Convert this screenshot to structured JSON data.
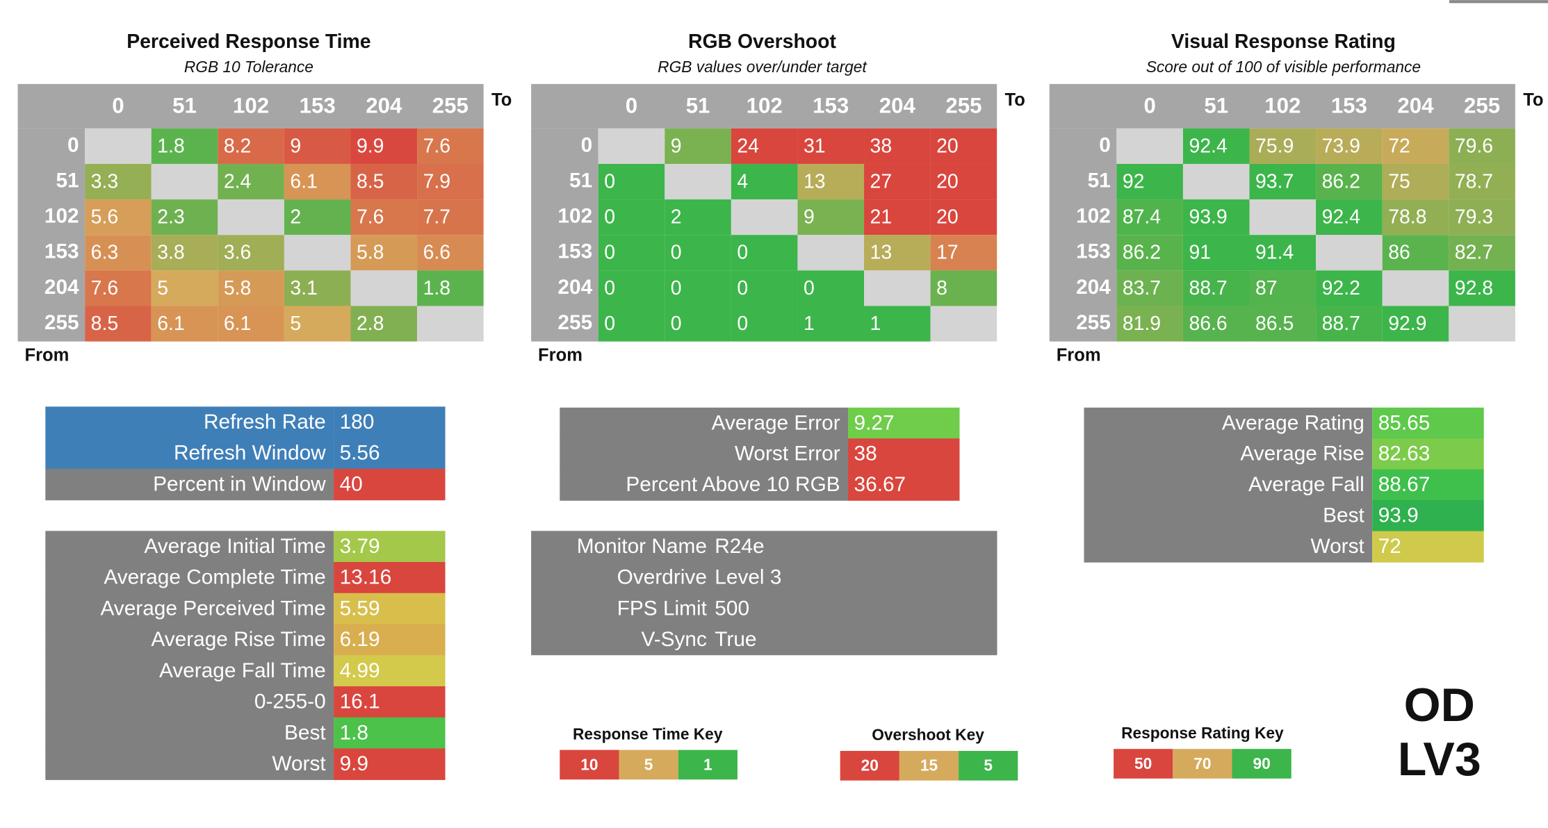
{
  "matrices": [
    {
      "title": "Perceived Response Time",
      "subtitle": "RGB 10 Tolerance",
      "to_label": "To",
      "from_label": "From",
      "columns": [
        0,
        51,
        102,
        153,
        204,
        255
      ],
      "rows": [
        0,
        51,
        102,
        153,
        204,
        255
      ],
      "cells": [
        [
          null,
          1.8,
          8.2,
          9,
          9.9,
          7.6
        ],
        [
          3.3,
          null,
          2.4,
          6.1,
          8.5,
          7.9
        ],
        [
          5.6,
          2.3,
          null,
          2,
          7.6,
          7.7
        ],
        [
          6.3,
          3.8,
          3.6,
          null,
          5.8,
          6.6
        ],
        [
          7.6,
          5,
          5.8,
          3.1,
          null,
          1.8
        ],
        [
          8.5,
          6.1,
          6.1,
          5,
          2.8,
          null
        ]
      ]
    },
    {
      "title": "RGB Overshoot",
      "subtitle": "RGB values over/under target",
      "to_label": "To",
      "from_label": "From",
      "columns": [
        0,
        51,
        102,
        153,
        204,
        255
      ],
      "rows": [
        0,
        51,
        102,
        153,
        204,
        255
      ],
      "cells": [
        [
          null,
          9,
          24,
          31,
          38,
          20
        ],
        [
          0,
          null,
          4,
          13,
          27,
          20
        ],
        [
          0,
          2,
          null,
          9,
          21,
          20
        ],
        [
          0,
          0,
          0,
          null,
          13,
          17
        ],
        [
          0,
          0,
          0,
          0,
          null,
          8
        ],
        [
          0,
          0,
          0,
          1,
          1,
          null
        ]
      ]
    },
    {
      "title": "Visual Response Rating",
      "subtitle": "Score out of 100 of visible performance",
      "to_label": "To",
      "from_label": "From",
      "columns": [
        0,
        51,
        102,
        153,
        204,
        255
      ],
      "rows": [
        0,
        51,
        102,
        153,
        204,
        255
      ],
      "cells": [
        [
          null,
          92.4,
          75.9,
          73.9,
          72,
          79.6
        ],
        [
          92,
          null,
          93.7,
          86.2,
          75,
          78.7
        ],
        [
          87.4,
          93.9,
          null,
          92.4,
          78.8,
          79.3
        ],
        [
          86.2,
          91,
          91.4,
          null,
          86,
          82.7
        ],
        [
          83.7,
          88.7,
          87,
          92.2,
          null,
          92.8
        ],
        [
          81.9,
          86.6,
          86.5,
          88.7,
          92.9,
          null
        ]
      ]
    }
  ],
  "stat_boxes": [
    {
      "label_color": "#808080",
      "rows": [
        {
          "label": "Refresh Rate",
          "value": 180,
          "label_color": "#3f7fb8",
          "value_color": "#3f7fb8"
        },
        {
          "label": "Refresh Window",
          "value": 5.56,
          "label_color": "#3f7fb8",
          "value_color": "#3f7fb8"
        },
        {
          "label": "Percent in Window",
          "value": 40,
          "value_color": "#d9463e"
        }
      ]
    },
    {
      "label_color": "#808080",
      "rows": [
        {
          "label": "Average Initial Time",
          "value": 3.79,
          "value_color": "#a3c84a"
        },
        {
          "label": "Average Complete Time",
          "value": 13.16,
          "value_color": "#d9463e"
        },
        {
          "label": "Average Perceived Time",
          "value": 5.59,
          "value_color": "#d8bf4c"
        },
        {
          "label": "Average Rise Time",
          "value": 6.19,
          "value_color": "#d8ae4f"
        },
        {
          "label": "Average Fall Time",
          "value": 4.99,
          "value_color": "#d3c94b"
        },
        {
          "label": "0-255-0",
          "value": 16.1,
          "value_color": "#d9463e"
        },
        {
          "label": "Best",
          "value": 1.8,
          "value_color": "#4cc24a"
        },
        {
          "label": "Worst",
          "value": 9.9,
          "value_color": "#d9463e"
        }
      ]
    },
    {
      "label_color": "#808080",
      "rows": [
        {
          "label": "Average Error",
          "value": 9.27,
          "value_color": "#6fcd4a"
        },
        {
          "label": "Worst Error",
          "value": 38,
          "value_color": "#d9463e"
        },
        {
          "label": "Percent Above 10 RGB",
          "value": 36.67,
          "value_color": "#d9463e"
        }
      ]
    },
    {
      "label_color": "#808080",
      "rows": [
        {
          "label": "Average Rating",
          "value": 85.65,
          "value_color": "#5ec94a"
        },
        {
          "label": "Average Rise",
          "value": 82.63,
          "value_color": "#7dcb4a"
        },
        {
          "label": "Average Fall",
          "value": 88.67,
          "value_color": "#3fbf4b"
        },
        {
          "label": "Best",
          "value": 93.9,
          "value_color": "#2eb14e"
        },
        {
          "label": "Worst",
          "value": 72,
          "value_color": "#cfca4b"
        }
      ]
    }
  ],
  "monitor": {
    "color": "#808080",
    "rows": [
      {
        "label": "Monitor Name",
        "value": "R24e"
      },
      {
        "label": "Overdrive",
        "value": "Level 3"
      },
      {
        "label": "FPS Limit",
        "value": 500
      },
      {
        "label": "V-Sync",
        "value": "True"
      }
    ]
  },
  "keys": [
    {
      "title": "Response Time Key",
      "values": [
        10,
        5,
        1
      ],
      "colors": [
        "#d9463e",
        "#d6aa5c",
        "#3cb54a"
      ]
    },
    {
      "title": "Overshoot Key",
      "values": [
        20,
        15,
        5
      ],
      "colors": [
        "#d9463e",
        "#d6aa5c",
        "#3cb54a"
      ]
    },
    {
      "title": "Response Rating Key",
      "values": [
        50,
        70,
        90
      ],
      "colors": [
        "#d9463e",
        "#d6aa5c",
        "#3cb54a"
      ]
    }
  ],
  "cell_empty_color": "#d4d4d4",
  "header_color": "#a6a6a6",
  "badge": {
    "line1": "OD",
    "line2": "LV3"
  }
}
